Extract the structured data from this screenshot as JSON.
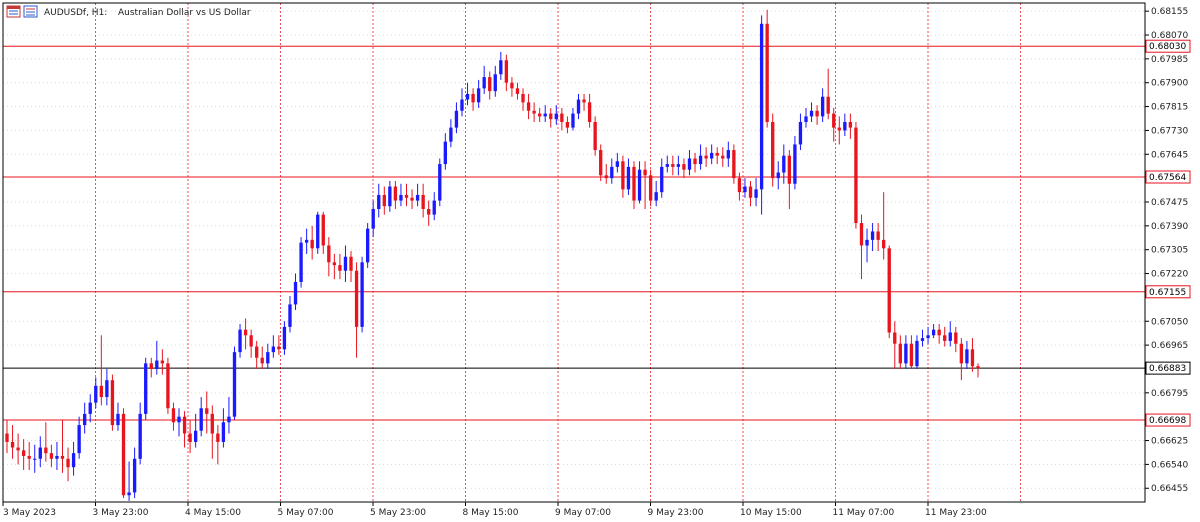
{
  "header": {
    "symbol": "AUDUSDf, H1:",
    "description": "Australian Dollar vs US Dollar"
  },
  "colors": {
    "up": "#1a1aff",
    "down": "#e8141e",
    "level_line": "#e8141e",
    "current_line": "#000000",
    "grid": "#d9d9d9",
    "sep": "#e8141e",
    "frame": "#000000"
  },
  "chart_data": {
    "type": "candlestick",
    "price_ticks": [
      "0.68155",
      "0.68070",
      "0.67985",
      "0.67900",
      "0.67815",
      "0.67730",
      "0.67645",
      "0.67475",
      "0.67390",
      "0.67305",
      "0.67220",
      "0.67050",
      "0.66965",
      "0.66795",
      "0.66625",
      "0.66540",
      "0.66455"
    ],
    "ylim": [
      0.66406,
      0.68184
    ],
    "time_labels": [
      "3 May 2023",
      "3 May 23:00",
      "4 May 15:00",
      "5 May 07:00",
      "5 May 23:00",
      "8 May 15:00",
      "9 May 07:00",
      "9 May 23:00",
      "10 May 15:00",
      "11 May 07:00",
      "11 May 23:00"
    ],
    "levels": [
      {
        "value": 0.6803,
        "label": "0.68030"
      },
      {
        "value": 0.67564,
        "label": "0.67564"
      },
      {
        "value": 0.67155,
        "label": "0.67155"
      },
      {
        "value": 0.66698,
        "label": "0.66698"
      }
    ],
    "current_price": {
      "value": 0.66883,
      "label": "0.66883"
    },
    "candles": [
      [
        0.6665,
        0.6662,
        0.667,
        0.6658
      ],
      [
        0.6662,
        0.666,
        0.6668,
        0.6656
      ],
      [
        0.666,
        0.6659,
        0.6665,
        0.6654
      ],
      [
        0.6659,
        0.6657,
        0.6663,
        0.6652
      ],
      [
        0.6657,
        0.6656,
        0.6662,
        0.6652
      ],
      [
        0.6656,
        0.6656,
        0.6661,
        0.6651
      ],
      [
        0.6656,
        0.666,
        0.6664,
        0.6653
      ],
      [
        0.666,
        0.6658,
        0.6669,
        0.6655
      ],
      [
        0.6658,
        0.6656,
        0.6661,
        0.6653
      ],
      [
        0.6656,
        0.6657,
        0.6662,
        0.6652
      ],
      [
        0.6657,
        0.6656,
        0.667,
        0.6651
      ],
      [
        0.6656,
        0.6653,
        0.666,
        0.6648
      ],
      [
        0.6653,
        0.6658,
        0.6662,
        0.665
      ],
      [
        0.6658,
        0.6668,
        0.6671,
        0.6656
      ],
      [
        0.6668,
        0.6672,
        0.6676,
        0.6665
      ],
      [
        0.6672,
        0.6676,
        0.6679,
        0.6669
      ],
      [
        0.6676,
        0.6682,
        0.6685,
        0.6674
      ],
      [
        0.6682,
        0.6678,
        0.67,
        0.6675
      ],
      [
        0.6678,
        0.6684,
        0.6688,
        0.6675
      ],
      [
        0.6684,
        0.6668,
        0.6686,
        0.6666
      ],
      [
        0.6668,
        0.6672,
        0.6676,
        0.6666
      ],
      [
        0.6672,
        0.6643,
        0.6674,
        0.6642
      ],
      [
        0.6643,
        0.6644,
        0.6655,
        0.6641
      ],
      [
        0.6644,
        0.6656,
        0.666,
        0.6642
      ],
      [
        0.6656,
        0.6672,
        0.6676,
        0.6654
      ],
      [
        0.6672,
        0.669,
        0.6692,
        0.667
      ],
      [
        0.669,
        0.6688,
        0.6692,
        0.6685
      ],
      [
        0.6688,
        0.6691,
        0.6698,
        0.6686
      ],
      [
        0.6691,
        0.669,
        0.6695,
        0.6686
      ],
      [
        0.669,
        0.6674,
        0.6692,
        0.6672
      ],
      [
        0.6674,
        0.6669,
        0.6676,
        0.6666
      ],
      [
        0.6669,
        0.6671,
        0.6674,
        0.6664
      ],
      [
        0.6671,
        0.6665,
        0.6673,
        0.666
      ],
      [
        0.6665,
        0.6662,
        0.667,
        0.6658
      ],
      [
        0.6662,
        0.6666,
        0.6672,
        0.666
      ],
      [
        0.6666,
        0.6674,
        0.6678,
        0.6664
      ],
      [
        0.6674,
        0.6672,
        0.668,
        0.6665
      ],
      [
        0.6672,
        0.6665,
        0.6675,
        0.6656
      ],
      [
        0.6665,
        0.6662,
        0.6668,
        0.6654
      ],
      [
        0.6662,
        0.6669,
        0.6674,
        0.666
      ],
      [
        0.6669,
        0.6671,
        0.6678,
        0.6665
      ],
      [
        0.6671,
        0.6694,
        0.6696,
        0.667
      ],
      [
        0.6694,
        0.6702,
        0.6704,
        0.6692
      ],
      [
        0.6702,
        0.67,
        0.6706,
        0.6695
      ],
      [
        0.67,
        0.6696,
        0.6702,
        0.6692
      ],
      [
        0.6696,
        0.6692,
        0.6698,
        0.6688
      ],
      [
        0.6692,
        0.669,
        0.6696,
        0.6688
      ],
      [
        0.669,
        0.6694,
        0.6697,
        0.6688
      ],
      [
        0.6694,
        0.6696,
        0.67,
        0.6692
      ],
      [
        0.6696,
        0.6695,
        0.67,
        0.6693
      ],
      [
        0.6695,
        0.6703,
        0.6705,
        0.6693
      ],
      [
        0.6703,
        0.6711,
        0.6714,
        0.6701
      ],
      [
        0.6711,
        0.6719,
        0.6722,
        0.6709
      ],
      [
        0.6719,
        0.6733,
        0.6735,
        0.6717
      ],
      [
        0.6733,
        0.6734,
        0.6738,
        0.6729
      ],
      [
        0.6734,
        0.6731,
        0.6739,
        0.6727
      ],
      [
        0.6731,
        0.6743,
        0.6744,
        0.6729
      ],
      [
        0.6743,
        0.6732,
        0.6744,
        0.6729
      ],
      [
        0.6732,
        0.6726,
        0.6735,
        0.6721
      ],
      [
        0.6726,
        0.6725,
        0.6729,
        0.672
      ],
      [
        0.6725,
        0.6723,
        0.6729,
        0.672
      ],
      [
        0.6723,
        0.6728,
        0.6732,
        0.6719
      ],
      [
        0.6728,
        0.6723,
        0.673,
        0.6719
      ],
      [
        0.6723,
        0.6703,
        0.6726,
        0.6692
      ],
      [
        0.6703,
        0.6726,
        0.6728,
        0.6701
      ],
      [
        0.6726,
        0.6738,
        0.674,
        0.6724
      ],
      [
        0.6738,
        0.6745,
        0.6748,
        0.6735
      ],
      [
        0.6745,
        0.675,
        0.6754,
        0.6742
      ],
      [
        0.675,
        0.6746,
        0.6753,
        0.6743
      ],
      [
        0.6746,
        0.6753,
        0.6755,
        0.6744
      ],
      [
        0.6753,
        0.6748,
        0.6755,
        0.6745
      ],
      [
        0.6748,
        0.675,
        0.6754,
        0.6746
      ],
      [
        0.675,
        0.6749,
        0.6754,
        0.6746
      ],
      [
        0.6749,
        0.6748,
        0.6752,
        0.6745
      ],
      [
        0.6748,
        0.675,
        0.6754,
        0.6746
      ],
      [
        0.675,
        0.6745,
        0.6754,
        0.6742
      ],
      [
        0.6745,
        0.6743,
        0.6748,
        0.6739
      ],
      [
        0.6743,
        0.6748,
        0.6751,
        0.6741
      ],
      [
        0.6748,
        0.6761,
        0.6763,
        0.6746
      ],
      [
        0.6761,
        0.6769,
        0.6772,
        0.6759
      ],
      [
        0.6769,
        0.6774,
        0.6777,
        0.6767
      ],
      [
        0.6774,
        0.678,
        0.6783,
        0.6772
      ],
      [
        0.678,
        0.6784,
        0.6788,
        0.6778
      ],
      [
        0.6784,
        0.6786,
        0.679,
        0.6782
      ],
      [
        0.6786,
        0.6783,
        0.6788,
        0.678
      ],
      [
        0.6783,
        0.6788,
        0.6791,
        0.6781
      ],
      [
        0.6788,
        0.6792,
        0.6796,
        0.6786
      ],
      [
        0.6792,
        0.6787,
        0.6794,
        0.6784
      ],
      [
        0.6787,
        0.6793,
        0.6796,
        0.6785
      ],
      [
        0.6793,
        0.6798,
        0.6801,
        0.6791
      ],
      [
        0.6798,
        0.679,
        0.68,
        0.6787
      ],
      [
        0.679,
        0.6788,
        0.6792,
        0.6785
      ],
      [
        0.6788,
        0.6786,
        0.679,
        0.6784
      ],
      [
        0.6786,
        0.6783,
        0.6788,
        0.678
      ],
      [
        0.6783,
        0.678,
        0.6786,
        0.6777
      ],
      [
        0.678,
        0.6779,
        0.6783,
        0.6776
      ],
      [
        0.6779,
        0.6778,
        0.6781,
        0.6776
      ],
      [
        0.6778,
        0.6779,
        0.6782,
        0.6776
      ],
      [
        0.6779,
        0.6777,
        0.6781,
        0.6774
      ],
      [
        0.6777,
        0.6779,
        0.6782,
        0.6775
      ],
      [
        0.6779,
        0.6776,
        0.6781,
        0.6773
      ],
      [
        0.6776,
        0.6774,
        0.6778,
        0.6772
      ],
      [
        0.6774,
        0.6779,
        0.6781,
        0.6773
      ],
      [
        0.6779,
        0.6784,
        0.6786,
        0.6777
      ],
      [
        0.6784,
        0.6783,
        0.6786,
        0.678
      ],
      [
        0.6783,
        0.6776,
        0.6786,
        0.6774
      ],
      [
        0.6776,
        0.6766,
        0.6778,
        0.6764
      ],
      [
        0.6766,
        0.6757,
        0.6768,
        0.6755
      ],
      [
        0.6757,
        0.6756,
        0.6761,
        0.6754
      ],
      [
        0.6756,
        0.676,
        0.6763,
        0.6754
      ],
      [
        0.676,
        0.6762,
        0.6765,
        0.6758
      ],
      [
        0.6762,
        0.6752,
        0.6764,
        0.6749
      ],
      [
        0.6752,
        0.676,
        0.6763,
        0.675
      ],
      [
        0.676,
        0.6748,
        0.6762,
        0.6745
      ],
      [
        0.6748,
        0.6759,
        0.6762,
        0.6747
      ],
      [
        0.6759,
        0.6757,
        0.6762,
        0.6745
      ],
      [
        0.6757,
        0.6748,
        0.6759,
        0.6746
      ],
      [
        0.6748,
        0.6751,
        0.6755,
        0.6746
      ],
      [
        0.6751,
        0.676,
        0.6763,
        0.6749
      ],
      [
        0.676,
        0.6761,
        0.6764,
        0.6758
      ],
      [
        0.6761,
        0.676,
        0.6764,
        0.6757
      ],
      [
        0.676,
        0.6761,
        0.6764,
        0.6757
      ],
      [
        0.6761,
        0.6759,
        0.6763,
        0.6756
      ],
      [
        0.6759,
        0.6763,
        0.6766,
        0.6757
      ],
      [
        0.6763,
        0.6761,
        0.6765,
        0.6758
      ],
      [
        0.6761,
        0.6764,
        0.6768,
        0.6759
      ],
      [
        0.6764,
        0.6763,
        0.6767,
        0.676
      ],
      [
        0.6763,
        0.6765,
        0.6768,
        0.6761
      ],
      [
        0.6765,
        0.6764,
        0.6767,
        0.6761
      ],
      [
        0.6764,
        0.6763,
        0.6767,
        0.676
      ],
      [
        0.6763,
        0.6766,
        0.6769,
        0.676
      ],
      [
        0.6766,
        0.6756,
        0.6768,
        0.6754
      ],
      [
        0.6756,
        0.6751,
        0.6758,
        0.6748
      ],
      [
        0.6751,
        0.6753,
        0.6756,
        0.6749
      ],
      [
        0.6753,
        0.6749,
        0.6755,
        0.6746
      ],
      [
        0.6749,
        0.6752,
        0.6756,
        0.6746
      ],
      [
        0.6752,
        0.6811,
        0.6814,
        0.6743
      ],
      [
        0.6811,
        0.6776,
        0.6816,
        0.6774
      ],
      [
        0.6776,
        0.6756,
        0.6779,
        0.6753
      ],
      [
        0.6756,
        0.6758,
        0.6762,
        0.6752
      ],
      [
        0.6758,
        0.6764,
        0.6768,
        0.6754
      ],
      [
        0.6764,
        0.6754,
        0.6766,
        0.6745
      ],
      [
        0.6754,
        0.6768,
        0.6771,
        0.6752
      ],
      [
        0.6768,
        0.6776,
        0.6779,
        0.6766
      ],
      [
        0.6776,
        0.6778,
        0.6781,
        0.6774
      ],
      [
        0.6778,
        0.678,
        0.6783,
        0.6776
      ],
      [
        0.678,
        0.6778,
        0.6782,
        0.6775
      ],
      [
        0.6778,
        0.6785,
        0.6788,
        0.6776
      ],
      [
        0.6785,
        0.6779,
        0.6795,
        0.6777
      ],
      [
        0.6779,
        0.6774,
        0.6781,
        0.6769
      ],
      [
        0.6774,
        0.6773,
        0.6778,
        0.6768
      ],
      [
        0.6773,
        0.6776,
        0.6779,
        0.6771
      ],
      [
        0.6776,
        0.6774,
        0.6779,
        0.677
      ],
      [
        0.6774,
        0.674,
        0.6776,
        0.6738
      ],
      [
        0.674,
        0.6732,
        0.6743,
        0.672
      ],
      [
        0.6732,
        0.6734,
        0.6738,
        0.6726
      ],
      [
        0.6734,
        0.6737,
        0.674,
        0.673
      ],
      [
        0.6737,
        0.6734,
        0.674,
        0.673
      ],
      [
        0.6734,
        0.6731,
        0.6751,
        0.6727
      ],
      [
        0.6731,
        0.6701,
        0.6732,
        0.6699
      ],
      [
        0.6701,
        0.6697,
        0.6705,
        0.6688
      ],
      [
        0.6697,
        0.669,
        0.67,
        0.6688
      ],
      [
        0.669,
        0.6697,
        0.67,
        0.6688
      ],
      [
        0.6697,
        0.6689,
        0.67,
        0.6688
      ],
      [
        0.6689,
        0.6698,
        0.67,
        0.6688
      ],
      [
        0.6698,
        0.6699,
        0.6702,
        0.6696
      ],
      [
        0.6699,
        0.67,
        0.6703,
        0.6697
      ],
      [
        0.67,
        0.6702,
        0.6704,
        0.6699
      ],
      [
        0.6702,
        0.67,
        0.6704,
        0.6697
      ],
      [
        0.67,
        0.6698,
        0.6703,
        0.6696
      ],
      [
        0.6698,
        0.6701,
        0.6705,
        0.6696
      ],
      [
        0.6701,
        0.6697,
        0.6703,
        0.6694
      ],
      [
        0.6697,
        0.669,
        0.6699,
        0.6684
      ],
      [
        0.669,
        0.6695,
        0.6698,
        0.6688
      ],
      [
        0.6695,
        0.6689,
        0.6699,
        0.6687
      ],
      [
        0.6689,
        0.66883,
        0.669,
        0.6685
      ]
    ]
  }
}
